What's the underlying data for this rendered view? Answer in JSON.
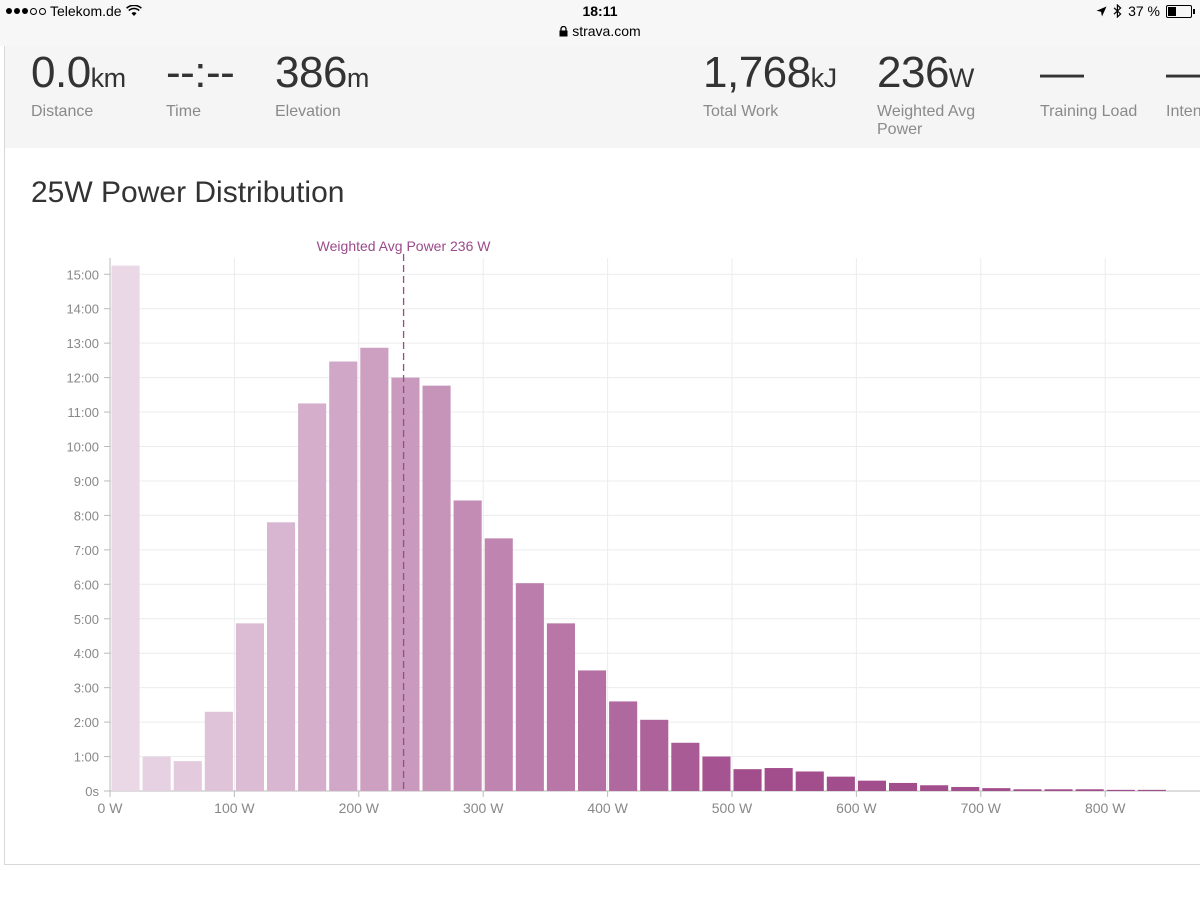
{
  "statusbar": {
    "carrier": "Telekom.de",
    "time": "18:11",
    "url": "strava.com",
    "battery": "37 %"
  },
  "stats": [
    {
      "value": "0.0",
      "unit": "km",
      "label": "Distance"
    },
    {
      "value": "--:--",
      "unit": "",
      "label": "Time"
    },
    {
      "value": "386",
      "unit": "m",
      "label": "Elevation"
    },
    {
      "value": "1,768",
      "unit": "kJ",
      "label": "Total Work"
    },
    {
      "value": "236",
      "unit": "W",
      "label": "Weighted Avg Power"
    },
    {
      "value": "—",
      "unit": "",
      "label": "Training Load"
    },
    {
      "value": "—",
      "unit": "",
      "label": "Inten"
    }
  ],
  "chart_title": "25W Power Distribution",
  "colors": {
    "bar_light": "#ead8e6",
    "bar_dark": "#a24d8c",
    "accent": "#9b4a8a"
  },
  "chart_data": {
    "type": "bar",
    "title": "25W Power Distribution",
    "bin_width_w": 25,
    "x_start": [
      0,
      25,
      50,
      75,
      100,
      125,
      150,
      175,
      200,
      225,
      250,
      275,
      300,
      325,
      350,
      375,
      400,
      425,
      450,
      475,
      500,
      525,
      550,
      575,
      600,
      625,
      650,
      675,
      700,
      725,
      750,
      775,
      800,
      825
    ],
    "values_seconds": [
      930,
      60,
      52,
      138,
      292,
      468,
      675,
      748,
      772,
      720,
      706,
      506,
      440,
      362,
      292,
      210,
      156,
      124,
      84,
      60,
      38,
      40,
      34,
      25,
      18,
      14,
      10,
      7,
      5,
      3,
      3,
      3,
      2,
      2
    ],
    "xlim": [
      0,
      875
    ],
    "ylim_seconds": [
      0,
      915
    ],
    "x_ticks": [
      "0 W",
      "100 W",
      "200 W",
      "300 W",
      "400 W",
      "500 W",
      "600 W",
      "700 W",
      "800 W"
    ],
    "y_ticks": [
      "0s",
      "1:00",
      "2:00",
      "3:00",
      "4:00",
      "5:00",
      "6:00",
      "7:00",
      "8:00",
      "9:00",
      "10:00",
      "11:00",
      "12:00",
      "13:00",
      "14:00",
      "15:00"
    ],
    "reference_line": {
      "x": 236,
      "label": "Weighted Avg Power 236 W"
    }
  }
}
